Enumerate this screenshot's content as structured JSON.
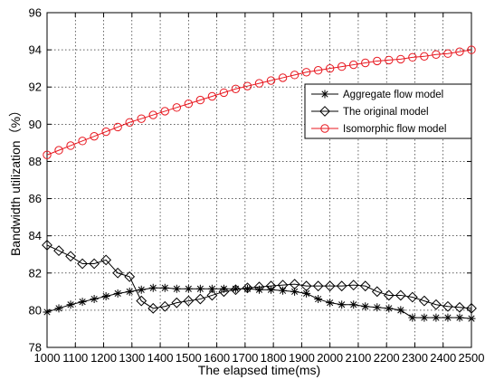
{
  "chart_data": {
    "type": "line",
    "xlabel": "The elapsed time(ms)",
    "ylabel": "Bandwidth utilization（%）",
    "xlim": [
      1000,
      2500
    ],
    "ylim": [
      78,
      96
    ],
    "xticks": [
      1000,
      1100,
      1200,
      1300,
      1400,
      1500,
      1600,
      1700,
      1800,
      1900,
      2000,
      2100,
      2200,
      2300,
      2400,
      2500
    ],
    "yticks": [
      78,
      80,
      82,
      84,
      86,
      88,
      90,
      92,
      94,
      96
    ],
    "grid": true,
    "legend_position": "right",
    "x": [
      1000,
      1041.67,
      1083.33,
      1125,
      1166.67,
      1208.33,
      1250,
      1291.67,
      1333.33,
      1375,
      1416.67,
      1458.33,
      1500,
      1541.67,
      1583.33,
      1625,
      1666.67,
      1708.33,
      1750,
      1791.67,
      1833.33,
      1875,
      1916.67,
      1958.33,
      2000,
      2041.67,
      2083.33,
      2125,
      2166.67,
      2208.33,
      2250,
      2291.67,
      2333.33,
      2375,
      2416.67,
      2458.33,
      2500
    ],
    "series": [
      {
        "name": "Aggregate flow model",
        "marker": "asterisk",
        "color": "#000000",
        "values": [
          79.9,
          80.1,
          80.3,
          80.45,
          80.6,
          80.75,
          80.9,
          81.0,
          81.1,
          81.2,
          81.2,
          81.15,
          81.15,
          81.15,
          81.15,
          81.15,
          81.15,
          81.15,
          81.1,
          81.1,
          81.05,
          81.0,
          80.9,
          80.6,
          80.4,
          80.3,
          80.3,
          80.2,
          80.15,
          80.1,
          80.0,
          79.6,
          79.6,
          79.6,
          79.6,
          79.6,
          79.55
        ]
      },
      {
        "name": "The original model",
        "marker": "diamond",
        "color": "#000000",
        "values": [
          83.5,
          83.2,
          82.9,
          82.5,
          82.5,
          82.7,
          82.0,
          81.8,
          80.5,
          80.1,
          80.2,
          80.4,
          80.5,
          80.6,
          80.8,
          81.0,
          81.1,
          81.2,
          81.25,
          81.3,
          81.35,
          81.4,
          81.3,
          81.3,
          81.3,
          81.3,
          81.35,
          81.3,
          81.0,
          80.8,
          80.8,
          80.7,
          80.5,
          80.3,
          80.2,
          80.15,
          80.1
        ]
      },
      {
        "name": "Isomorphic flow model",
        "marker": "circle",
        "color": "#e8171f",
        "values": [
          88.35,
          88.6,
          88.85,
          89.1,
          89.35,
          89.6,
          89.85,
          90.1,
          90.3,
          90.5,
          90.7,
          90.9,
          91.1,
          91.3,
          91.5,
          91.7,
          91.9,
          92.05,
          92.2,
          92.35,
          92.5,
          92.65,
          92.8,
          92.9,
          93.0,
          93.1,
          93.2,
          93.3,
          93.4,
          93.45,
          93.5,
          93.6,
          93.65,
          93.75,
          93.8,
          93.9,
          94.0
        ]
      }
    ]
  }
}
